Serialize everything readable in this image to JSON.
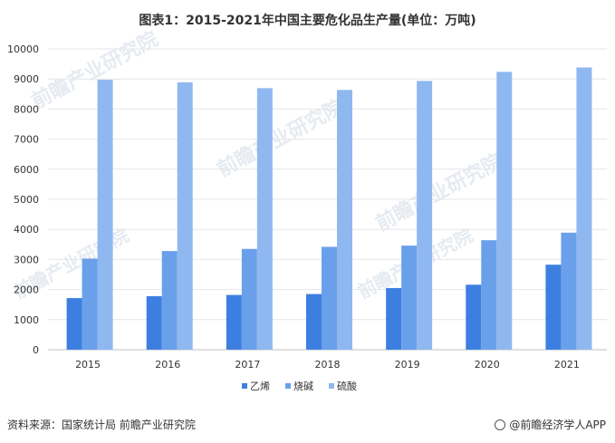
{
  "title": "图表1：2015-2021年中国主要危化品生产量(单位：万吨)",
  "source": "资料来源：国家统计局 前瞻产业研究院",
  "brand": "@前瞻经济学人APP",
  "watermark": "前瞻产业研究院",
  "colors": {
    "series": [
      "#3d7fe0",
      "#6aa0ea",
      "#8fb8f0"
    ],
    "grid": "#e6e6e6",
    "axis": "#bfbfbf"
  },
  "chart_data": {
    "type": "bar",
    "title": "图表1：2015-2021年中国主要危化品生产量(单位：万吨)",
    "xlabel": "",
    "ylabel": "",
    "ylim": [
      0,
      10000
    ],
    "yticks": [
      0,
      1000,
      2000,
      3000,
      4000,
      5000,
      6000,
      7000,
      8000,
      9000,
      10000
    ],
    "categories": [
      "2015",
      "2016",
      "2017",
      "2018",
      "2019",
      "2020",
      "2021"
    ],
    "series": [
      {
        "name": "乙烯",
        "values": [
          1715,
          1780,
          1820,
          1850,
          2050,
          2160,
          2826
        ]
      },
      {
        "name": "烧碱",
        "values": [
          3030,
          3280,
          3350,
          3420,
          3460,
          3640,
          3891
        ]
      },
      {
        "name": "硫酸",
        "values": [
          8976,
          8890,
          8695,
          8636,
          8935,
          9238,
          9383
        ]
      }
    ],
    "legend_position": "bottom-center"
  }
}
